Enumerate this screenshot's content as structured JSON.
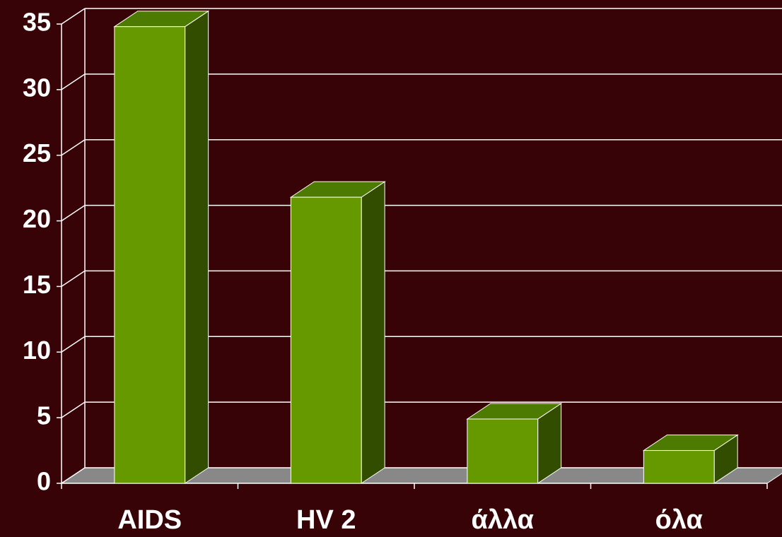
{
  "chart_data": {
    "type": "bar3d",
    "categories": [
      "AIDS",
      "HV 2",
      "άλλα",
      "όλα"
    ],
    "values": [
      34.8,
      21.8,
      4.9,
      2.5
    ],
    "color": "#669900",
    "ylim": [
      0,
      35
    ],
    "yticks": [
      0,
      5,
      10,
      15,
      20,
      25,
      30,
      35
    ],
    "grid": true
  }
}
